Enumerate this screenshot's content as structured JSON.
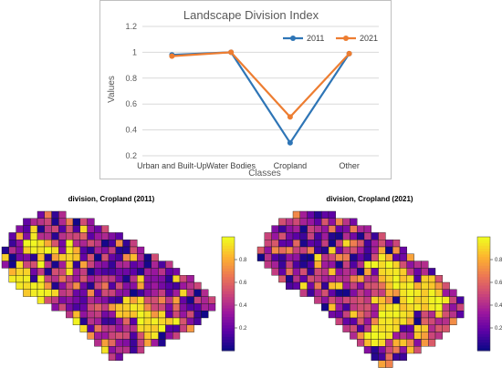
{
  "chart_data": [
    {
      "type": "line",
      "title": "Landscape Division Index",
      "xlabel": "Classes",
      "ylabel": "Values",
      "categories": [
        "Urban and Built-Up",
        "Water Bodies",
        "Cropland",
        "Other"
      ],
      "ylim": [
        0.2,
        1.2
      ],
      "yticks": [
        "0.2",
        "0.4",
        "0.6",
        "0.8",
        "1",
        "1.2"
      ],
      "grid": true,
      "legend": "top-right",
      "series": [
        {
          "name": "2011",
          "color": "#2e75b6",
          "values": [
            0.98,
            1.0,
            0.3,
            0.99
          ]
        },
        {
          "name": "2021",
          "color": "#ed7d31",
          "values": [
            0.97,
            1.0,
            0.5,
            0.99
          ]
        }
      ]
    },
    {
      "type": "heatmap",
      "title": "division, Cropland (2011)",
      "colorbar_ticks": [
        "0.2",
        "0.4",
        "0.6",
        "0.8"
      ],
      "colorscale": [
        "#0d0887",
        "#5c01a6",
        "#9c179e",
        "#cc4778",
        "#ed7953",
        "#fdb42f",
        "#f0f921"
      ],
      "grid_rows": 22,
      "grid_cols": 30,
      "row_spans": [
        [
          5,
          8
        ],
        [
          3,
          12
        ],
        [
          2,
          14
        ],
        [
          1,
          16
        ],
        [
          1,
          18
        ],
        [
          0,
          19
        ],
        [
          0,
          21
        ],
        [
          0,
          23
        ],
        [
          1,
          24
        ],
        [
          1,
          26
        ],
        [
          2,
          27
        ],
        [
          3,
          28
        ],
        [
          5,
          29
        ],
        [
          7,
          29
        ],
        [
          9,
          28
        ],
        [
          10,
          27
        ],
        [
          11,
          26
        ],
        [
          12,
          24
        ],
        [
          13,
          22
        ],
        [
          14,
          19
        ],
        [
          15,
          16
        ],
        [
          16,
          13
        ]
      ],
      "yellow_clusters": [
        [
          4,
          4
        ],
        [
          5,
          5
        ],
        [
          6,
          9
        ],
        [
          9,
          2
        ],
        [
          10,
          3
        ],
        [
          14,
          19
        ],
        [
          15,
          22
        ],
        [
          16,
          20
        ],
        [
          17,
          10
        ],
        [
          18,
          11
        ],
        [
          19,
          12
        ],
        [
          13,
          17
        ],
        [
          11,
          5
        ]
      ],
      "base_level": 0.12
    },
    {
      "type": "heatmap",
      "title": "division, Cropland (2021)",
      "colorbar_ticks": [
        "0.2",
        "0.4",
        "0.6",
        "0.8"
      ],
      "colorscale": [
        "#0d0887",
        "#5c01a6",
        "#9c179e",
        "#cc4778",
        "#ed7953",
        "#fdb42f",
        "#f0f921"
      ],
      "grid_rows": 22,
      "grid_cols": 30,
      "row_spans": [
        [
          5,
          10
        ],
        [
          3,
          13
        ],
        [
          2,
          15
        ],
        [
          1,
          17
        ],
        [
          1,
          19
        ],
        [
          0,
          20
        ],
        [
          0,
          21
        ],
        [
          1,
          23
        ],
        [
          2,
          24
        ],
        [
          3,
          25
        ],
        [
          4,
          26
        ],
        [
          6,
          27
        ],
        [
          8,
          28
        ],
        [
          9,
          28
        ],
        [
          10,
          28
        ],
        [
          11,
          27
        ],
        [
          12,
          26
        ],
        [
          13,
          25
        ],
        [
          14,
          24
        ],
        [
          15,
          22
        ],
        [
          16,
          20
        ],
        [
          17,
          18
        ]
      ],
      "yellow_clusters": [
        [
          7,
          17
        ],
        [
          8,
          18
        ],
        [
          9,
          19
        ],
        [
          10,
          20
        ],
        [
          11,
          21
        ],
        [
          12,
          22
        ],
        [
          13,
          20
        ],
        [
          14,
          18
        ],
        [
          15,
          19
        ],
        [
          16,
          17
        ],
        [
          17,
          16
        ],
        [
          11,
          24
        ],
        [
          12,
          25
        ]
      ],
      "base_level": 0.35
    }
  ]
}
